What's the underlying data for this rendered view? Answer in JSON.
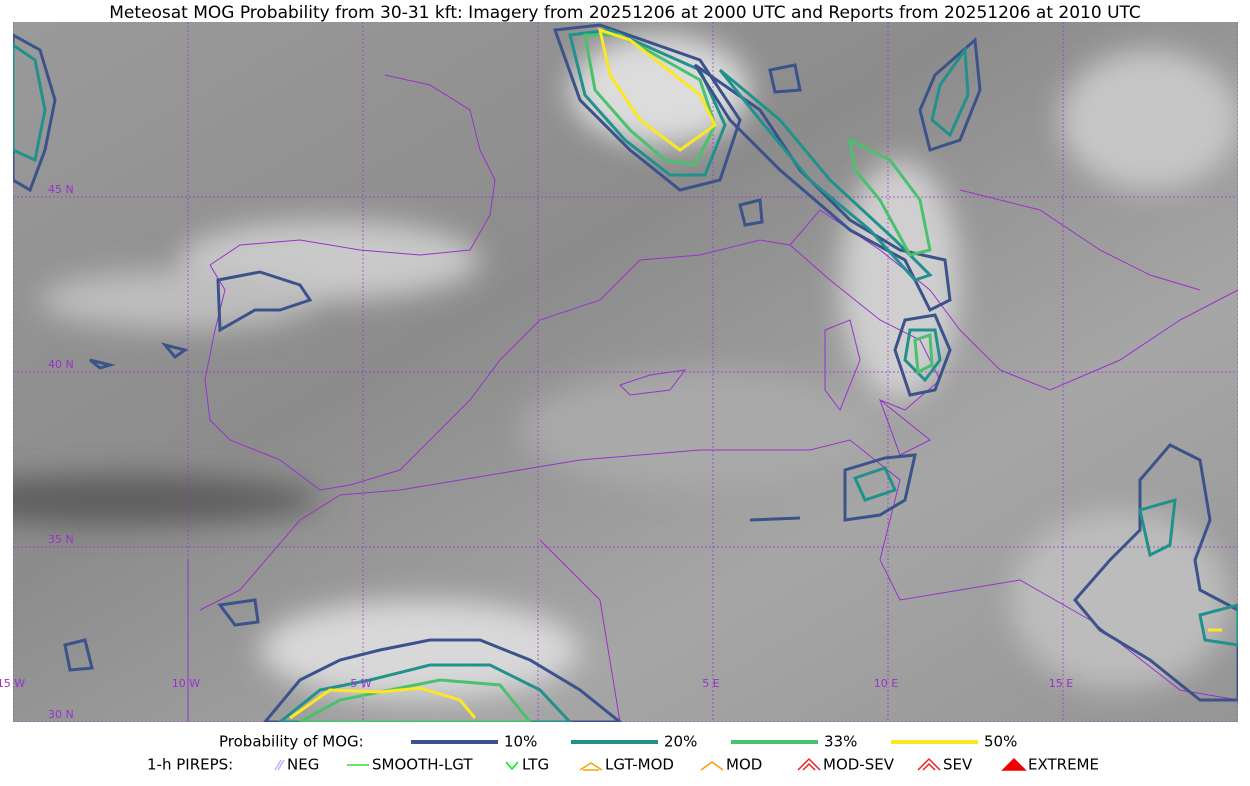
{
  "title": "Meteosat MOG Probability from 30-31 kft: Imagery from 20251206 at 2000 UTC and Reports from 20251206 at 2010 UTC",
  "grid_labels": {
    "lat": [
      "45 N",
      "40 N",
      "35 N",
      "30 N"
    ],
    "lon": [
      "15 W",
      "10 W",
      "5 W",
      "5 E",
      "10 E",
      "15 E"
    ]
  },
  "legend": {
    "probability_title": "Probability of MOG:",
    "levels": [
      {
        "label": "10%",
        "color": "#3b528b"
      },
      {
        "label": "20%",
        "color": "#21918c"
      },
      {
        "label": "33%",
        "color": "#4ac16d"
      },
      {
        "label": "50%",
        "color": "#fde725"
      }
    ],
    "pireps_title": "1-h PIREPS:",
    "pireps": [
      {
        "label": "NEG",
        "color": "#b4b4ff"
      },
      {
        "label": "SMOOTH-LGT",
        "color": "#33dd33"
      },
      {
        "label": "LTG",
        "color": "#00ee00"
      },
      {
        "label": "LGT-MOD",
        "color": "#f5a300"
      },
      {
        "label": "MOD",
        "color": "#f5a300"
      },
      {
        "label": "MOD-SEV",
        "color": "#ee2222"
      },
      {
        "label": "SEV",
        "color": "#ee2222"
      },
      {
        "label": "EXTREME",
        "color": "#ee0000"
      }
    ]
  }
}
